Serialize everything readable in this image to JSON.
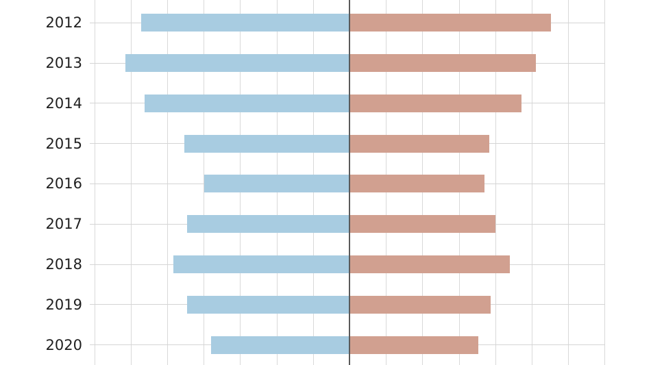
{
  "chart_data": {
    "type": "bar",
    "subtype": "diverging",
    "orientation": "horizontal",
    "title": "",
    "xlabel": "",
    "ylabel": "",
    "categories": [
      "2012",
      "2013",
      "2014",
      "2015",
      "2016",
      "2017",
      "2018",
      "2019",
      "2020"
    ],
    "series": [
      {
        "name": "left",
        "direction": "left",
        "color": "#a8cce1",
        "values": [
          5.73,
          6.15,
          5.62,
          4.53,
          4.0,
          4.47,
          4.83,
          4.46,
          3.8
        ]
      },
      {
        "name": "right",
        "direction": "right",
        "color": "#d1a090",
        "values": [
          5.51,
          5.11,
          4.72,
          3.83,
          3.7,
          3.99,
          4.4,
          3.87,
          3.52
        ]
      }
    ],
    "xlim": [
      -7,
      7
    ],
    "gridline_interval": 1,
    "grid": true,
    "legend_position": "none",
    "center_line_x": 0
  },
  "colors": {
    "background": "#ffffff",
    "bar_left": "#a8cce1",
    "bar_right": "#d1a090",
    "gridline": "#d9d9d9",
    "zero_axis": "#5a5a5a",
    "tick_label": "#1f1f1f"
  }
}
